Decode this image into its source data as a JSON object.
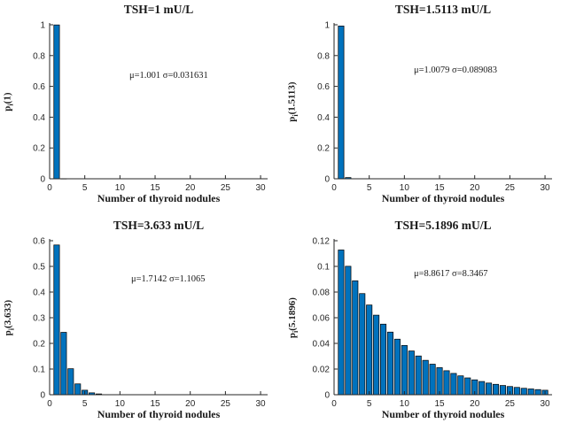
{
  "figure": {
    "background": "#ffffff",
    "bar_fill": "#0072BD",
    "bar_edge": "#000000",
    "axis_color": "#262626"
  },
  "chart_data": [
    {
      "type": "bar",
      "title": "TSH=1 mU/L",
      "xlabel": "Number of thyroid nodules",
      "ylabel": {
        "base": "p",
        "sub": "i",
        "arg": "(1)"
      },
      "annotation": "μ=1.001 σ=0.031631",
      "legend": null,
      "grid": false,
      "xlim": [
        0,
        31
      ],
      "ylim": [
        0,
        1
      ],
      "xticks": [
        0,
        5,
        10,
        15,
        20,
        25,
        30
      ],
      "yticks": [
        0,
        0.2,
        0.4,
        0.6,
        0.8,
        1
      ],
      "x": [
        1,
        2
      ],
      "values": [
        0.999,
        0.001
      ]
    },
    {
      "type": "bar",
      "title": "TSH=1.5113 mU/L",
      "xlabel": "Number of thyroid nodules",
      "ylabel": {
        "base": "p",
        "sub": "i",
        "arg": "(1.5113)"
      },
      "annotation": "μ=1.0079 σ=0.089083",
      "legend": null,
      "grid": false,
      "xlim": [
        0,
        31
      ],
      "ylim": [
        0,
        1
      ],
      "xticks": [
        0,
        5,
        10,
        15,
        20,
        25,
        30
      ],
      "yticks": [
        0,
        0.2,
        0.4,
        0.6,
        0.8,
        1
      ],
      "x": [
        1,
        2
      ],
      "values": [
        0.9921,
        0.0079
      ]
    },
    {
      "type": "bar",
      "title": "TSH=3.633 mU/L",
      "xlabel": "Number of thyroid nodules",
      "ylabel": {
        "base": "p",
        "sub": "i",
        "arg": "(3.633)"
      },
      "annotation": "μ=1.7142 σ=1.1065",
      "legend": null,
      "grid": false,
      "xlim": [
        0,
        31
      ],
      "ylim": [
        0,
        0.6
      ],
      "xticks": [
        0,
        5,
        10,
        15,
        20,
        25,
        30
      ],
      "yticks": [
        0,
        0.1,
        0.2,
        0.3,
        0.4,
        0.5,
        0.6
      ],
      "x": [
        1,
        2,
        3,
        4,
        5,
        6,
        7
      ],
      "values": [
        0.5834,
        0.2431,
        0.1013,
        0.0422,
        0.0176,
        0.0073,
        0.0031
      ]
    },
    {
      "type": "bar",
      "title": "TSH=5.1896 mU/L",
      "xlabel": "Number of thyroid nodules",
      "ylabel": {
        "base": "p",
        "sub": "i",
        "arg": "(5.1896)"
      },
      "annotation": "μ=8.8617 σ=8.3467",
      "legend": null,
      "grid": false,
      "xlim": [
        0,
        31
      ],
      "ylim": [
        0,
        0.12
      ],
      "xticks": [
        0,
        5,
        10,
        15,
        20,
        25,
        30
      ],
      "yticks": [
        0,
        0.02,
        0.04,
        0.06,
        0.08,
        0.1,
        0.12
      ],
      "x": [
        1,
        2,
        3,
        4,
        5,
        6,
        7,
        8,
        9,
        10,
        11,
        12,
        13,
        14,
        15,
        16,
        17,
        18,
        19,
        20,
        21,
        22,
        23,
        24,
        25,
        26,
        27,
        28,
        29,
        30
      ],
      "values": [
        0.1128,
        0.1001,
        0.0888,
        0.0788,
        0.0699,
        0.062,
        0.055,
        0.0488,
        0.0433,
        0.0384,
        0.0341,
        0.0302,
        0.0268,
        0.0238,
        0.0211,
        0.0187,
        0.0166,
        0.0147,
        0.0131,
        0.0116,
        0.0103,
        0.0091,
        0.0081,
        0.0072,
        0.0064,
        0.0057,
        0.005,
        0.0045,
        0.004,
        0.0035
      ]
    }
  ]
}
